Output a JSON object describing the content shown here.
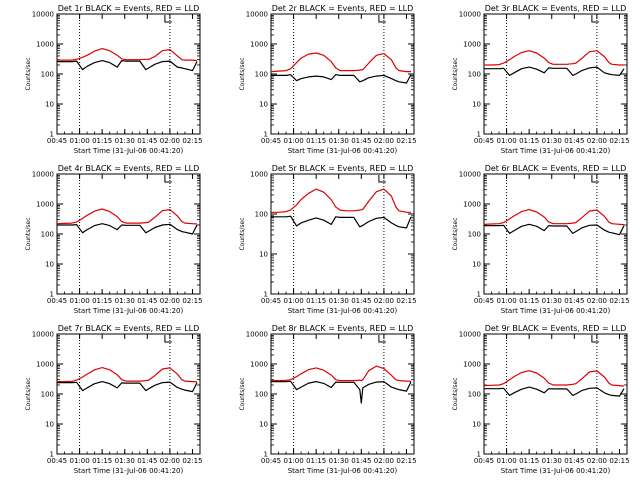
{
  "figure": {
    "colors": {
      "events": "#000000",
      "lld": "#e00000",
      "axes": "#000000",
      "background": "#ffffff"
    }
  },
  "chart_data": [
    {
      "type": "line",
      "title": "Det 1r BLACK = Events, RED = LLD",
      "xlabel": "Start Time (31-Jul-06 00:41:20)",
      "ylabel": "Counts/sec",
      "yscale": "log",
      "ylim": [
        1,
        10000
      ],
      "xlim": [
        "00:45",
        "02:20"
      ],
      "vlines": [
        "01:00",
        "02:00"
      ],
      "grid": false,
      "x_ticks": [
        "00:45",
        "01:00",
        "01:15",
        "01:30",
        "01:45",
        "02:00",
        "02:15"
      ],
      "y_ticks": [
        "1",
        "10",
        "100",
        "1000",
        "10000"
      ],
      "x": [
        "00:45",
        "00:50",
        "00:55",
        "00:58",
        "01:02",
        "01:05",
        "01:10",
        "01:15",
        "01:20",
        "01:25",
        "01:28",
        "01:31",
        "01:35",
        "01:40",
        "01:44",
        "01:46",
        "01:50",
        "01:55",
        "02:00",
        "02:05",
        "02:08",
        "02:10",
        "02:15",
        "02:18"
      ],
      "series": [
        {
          "name": "LLD",
          "color": "red",
          "values": [
            290,
            290,
            290,
            310,
            360,
            420,
            580,
            700,
            600,
            420,
            320,
            300,
            300,
            300,
            310,
            310,
            380,
            600,
            650,
            400,
            300,
            290,
            290,
            280
          ]
        },
        {
          "name": "Events",
          "color": "black",
          "values": [
            260,
            260,
            260,
            270,
            140,
            180,
            240,
            280,
            240,
            170,
            280,
            270,
            270,
            270,
            140,
            160,
            210,
            260,
            270,
            170,
            160,
            150,
            130,
            260
          ]
        }
      ]
    },
    {
      "type": "line",
      "title": "Det 2r BLACK = Events, RED = LLD",
      "xlabel": "Start Time (31-Jul-06 00:41:20)",
      "ylabel": "Counts/sec",
      "yscale": "log",
      "ylim": [
        1,
        10000
      ],
      "xlim": [
        "00:45",
        "02:20"
      ],
      "vlines": [
        "01:00",
        "02:00"
      ],
      "grid": false,
      "x_ticks": [
        "00:45",
        "01:00",
        "01:15",
        "01:30",
        "01:45",
        "02:00",
        "02:15"
      ],
      "y_ticks": [
        "1",
        "10",
        "100",
        "1000",
        "10000"
      ],
      "x": [
        "00:45",
        "00:50",
        "00:55",
        "00:58",
        "01:02",
        "01:05",
        "01:10",
        "01:15",
        "01:20",
        "01:25",
        "01:28",
        "01:31",
        "01:35",
        "01:40",
        "01:44",
        "01:46",
        "01:50",
        "01:55",
        "02:00",
        "02:05",
        "02:08",
        "02:10",
        "02:15",
        "02:18"
      ],
      "series": [
        {
          "name": "LLD",
          "color": "red",
          "values": [
            120,
            125,
            130,
            150,
            240,
            340,
            460,
            500,
            420,
            260,
            160,
            130,
            130,
            130,
            135,
            140,
            230,
            420,
            480,
            300,
            160,
            130,
            120,
            120
          ]
        },
        {
          "name": "Events",
          "color": "black",
          "values": [
            90,
            90,
            90,
            95,
            60,
            70,
            80,
            85,
            80,
            65,
            95,
            90,
            90,
            90,
            55,
            60,
            75,
            85,
            90,
            70,
            60,
            55,
            50,
            95
          ]
        }
      ]
    },
    {
      "type": "line",
      "title": "Det 3r BLACK = Events, RED = LLD",
      "xlabel": "Start Time (31-Jul-06 00:41:20)",
      "ylabel": "Counts/sec",
      "yscale": "log",
      "ylim": [
        1,
        10000
      ],
      "xlim": [
        "00:45",
        "02:20"
      ],
      "vlines": [
        "01:00",
        "02:00"
      ],
      "grid": false,
      "x_ticks": [
        "00:45",
        "01:00",
        "01:15",
        "01:30",
        "01:45",
        "02:00",
        "02:15"
      ],
      "y_ticks": [
        "1",
        "10",
        "100",
        "1000",
        "10000"
      ],
      "x": [
        "00:45",
        "00:50",
        "00:55",
        "00:58",
        "01:02",
        "01:05",
        "01:10",
        "01:15",
        "01:20",
        "01:25",
        "01:28",
        "01:31",
        "01:35",
        "01:40",
        "01:44",
        "01:46",
        "01:50",
        "01:55",
        "02:00",
        "02:05",
        "02:08",
        "02:10",
        "02:15",
        "02:18"
      ],
      "series": [
        {
          "name": "LLD",
          "color": "red",
          "values": [
            200,
            200,
            205,
            230,
            300,
            380,
            520,
            600,
            500,
            340,
            240,
            210,
            210,
            210,
            220,
            230,
            330,
            550,
            600,
            380,
            240,
            210,
            200,
            200
          ]
        },
        {
          "name": "Events",
          "color": "black",
          "values": [
            150,
            150,
            150,
            155,
            90,
            110,
            150,
            170,
            145,
            110,
            160,
            155,
            155,
            155,
            90,
            100,
            130,
            160,
            170,
            110,
            100,
            95,
            90,
            150
          ]
        }
      ]
    },
    {
      "type": "line",
      "title": "Det 4r BLACK = Events, RED = LLD",
      "xlabel": "Start Time (31-Jul-06 00:41:20)",
      "ylabel": "Counts/sec",
      "yscale": "log",
      "ylim": [
        1,
        10000
      ],
      "xlim": [
        "00:45",
        "02:20"
      ],
      "vlines": [
        "01:00",
        "02:00"
      ],
      "grid": false,
      "x_ticks": [
        "00:45",
        "01:00",
        "01:15",
        "01:30",
        "01:45",
        "02:00",
        "02:15"
      ],
      "y_ticks": [
        "1",
        "10",
        "100",
        "1000",
        "10000"
      ],
      "x": [
        "00:45",
        "00:50",
        "00:55",
        "00:58",
        "01:02",
        "01:05",
        "01:10",
        "01:15",
        "01:20",
        "01:25",
        "01:28",
        "01:31",
        "01:35",
        "01:40",
        "01:44",
        "01:46",
        "01:50",
        "01:55",
        "02:00",
        "02:05",
        "02:08",
        "02:10",
        "02:15",
        "02:18"
      ],
      "series": [
        {
          "name": "LLD",
          "color": "red",
          "values": [
            220,
            225,
            230,
            250,
            330,
            420,
            580,
            680,
            560,
            380,
            260,
            230,
            230,
            230,
            240,
            250,
            360,
            600,
            650,
            400,
            260,
            230,
            220,
            215
          ]
        },
        {
          "name": "Events",
          "color": "black",
          "values": [
            200,
            200,
            200,
            205,
            110,
            140,
            190,
            220,
            190,
            140,
            200,
            195,
            195,
            195,
            110,
            125,
            165,
            200,
            210,
            140,
            120,
            115,
            100,
            200
          ]
        }
      ]
    },
    {
      "type": "line",
      "title": "Det 5r BLACK = Events, RED = LLD",
      "xlabel": "Start Time (31-Jul-06 00:41:20)",
      "ylabel": "Counts/sec",
      "yscale": "log",
      "ylim": [
        1,
        1000
      ],
      "xlim": [
        "00:45",
        "02:20"
      ],
      "vlines": [
        "01:00",
        "02:00"
      ],
      "grid": false,
      "x_ticks": [
        "00:45",
        "01:00",
        "01:15",
        "01:30",
        "01:45",
        "02:00",
        "02:15"
      ],
      "y_ticks": [
        "1",
        "10",
        "100",
        "1000"
      ],
      "x": [
        "00:45",
        "00:50",
        "00:55",
        "00:58",
        "01:02",
        "01:05",
        "01:10",
        "01:15",
        "01:20",
        "01:25",
        "01:28",
        "01:31",
        "01:35",
        "01:40",
        "01:44",
        "01:46",
        "01:50",
        "01:55",
        "02:00",
        "02:05",
        "02:08",
        "02:10",
        "02:15",
        "02:18"
      ],
      "series": [
        {
          "name": "LLD",
          "color": "red",
          "values": [
            110,
            110,
            115,
            125,
            170,
            230,
            330,
            420,
            350,
            230,
            150,
            125,
            120,
            120,
            125,
            130,
            210,
            360,
            420,
            280,
            150,
            120,
            110,
            110
          ]
        },
        {
          "name": "Events",
          "color": "black",
          "values": [
            85,
            85,
            85,
            88,
            50,
            60,
            70,
            80,
            70,
            55,
            85,
            82,
            82,
            82,
            48,
            52,
            65,
            78,
            82,
            60,
            52,
            48,
            45,
            85
          ]
        }
      ]
    },
    {
      "type": "line",
      "title": "Det 6r BLACK = Events, RED = LLD",
      "xlabel": "Start Time (31-Jul-06 00:41:20)",
      "ylabel": "Counts/sec",
      "yscale": "log",
      "ylim": [
        1,
        10000
      ],
      "xlim": [
        "00:45",
        "02:20"
      ],
      "vlines": [
        "01:00",
        "02:00"
      ],
      "grid": false,
      "x_ticks": [
        "00:45",
        "01:00",
        "01:15",
        "01:30",
        "01:45",
        "02:00",
        "02:15"
      ],
      "y_ticks": [
        "1",
        "10",
        "100",
        "1000",
        "10000"
      ],
      "x": [
        "00:45",
        "00:50",
        "00:55",
        "00:58",
        "01:02",
        "01:05",
        "01:10",
        "01:15",
        "01:20",
        "01:25",
        "01:28",
        "01:31",
        "01:35",
        "01:40",
        "01:44",
        "01:46",
        "01:50",
        "01:55",
        "02:00",
        "02:05",
        "02:08",
        "02:10",
        "02:15",
        "02:18"
      ],
      "series": [
        {
          "name": "LLD",
          "color": "red",
          "values": [
            210,
            215,
            220,
            240,
            320,
            400,
            560,
            650,
            540,
            370,
            250,
            220,
            220,
            220,
            230,
            240,
            350,
            580,
            630,
            390,
            250,
            220,
            210,
            205
          ]
        },
        {
          "name": "Events",
          "color": "black",
          "values": [
            190,
            190,
            190,
            195,
            105,
            130,
            180,
            210,
            180,
            130,
            190,
            185,
            185,
            185,
            105,
            120,
            160,
            195,
            200,
            135,
            115,
            110,
            95,
            190
          ]
        }
      ]
    },
    {
      "type": "line",
      "title": "Det 7r BLACK = Events, RED = LLD",
      "xlabel": "Start Time (31-Jul-06 00:41:20)",
      "ylabel": "Counts/sec",
      "yscale": "log",
      "ylim": [
        1,
        10000
      ],
      "xlim": [
        "00:45",
        "02:20"
      ],
      "vlines": [
        "01:00",
        "02:00"
      ],
      "grid": false,
      "x_ticks": [
        "00:45",
        "01:00",
        "01:15",
        "01:30",
        "01:45",
        "02:00",
        "02:15"
      ],
      "y_ticks": [
        "1",
        "10",
        "100",
        "1000",
        "10000"
      ],
      "x": [
        "00:45",
        "00:50",
        "00:55",
        "00:58",
        "01:02",
        "01:05",
        "01:10",
        "01:15",
        "01:20",
        "01:25",
        "01:28",
        "01:31",
        "01:35",
        "01:40",
        "01:44",
        "01:46",
        "01:50",
        "01:55",
        "02:00",
        "02:05",
        "02:08",
        "02:10",
        "02:15",
        "02:18"
      ],
      "series": [
        {
          "name": "LLD",
          "color": "red",
          "values": [
            260,
            260,
            265,
            290,
            370,
            460,
            640,
            760,
            640,
            440,
            300,
            270,
            270,
            270,
            280,
            290,
            410,
            680,
            740,
            460,
            300,
            270,
            260,
            255
          ]
        },
        {
          "name": "Events",
          "color": "black",
          "values": [
            240,
            240,
            240,
            245,
            130,
            160,
            220,
            260,
            220,
            160,
            235,
            230,
            230,
            230,
            130,
            150,
            195,
            240,
            250,
            165,
            145,
            135,
            120,
            240
          ]
        }
      ]
    },
    {
      "type": "line",
      "title": "Det 8r BLACK = Events, RED = LLD",
      "xlabel": "Start Time (31-Jul-06 00:41:20)",
      "ylabel": "Counts/sec",
      "yscale": "log",
      "ylim": [
        1,
        10000
      ],
      "xlim": [
        "00:45",
        "02:20"
      ],
      "vlines": [
        "01:00",
        "02:00"
      ],
      "grid": false,
      "x_ticks": [
        "00:45",
        "01:00",
        "01:15",
        "01:30",
        "01:45",
        "02:00",
        "02:15"
      ],
      "y_ticks": [
        "1",
        "10",
        "100",
        "1000",
        "10000"
      ],
      "x": [
        "00:45",
        "00:50",
        "00:55",
        "00:58",
        "01:02",
        "01:05",
        "01:10",
        "01:15",
        "01:20",
        "01:25",
        "01:28",
        "01:31",
        "01:35",
        "01:40",
        "01:44",
        "01:45",
        "01:46",
        "01:50",
        "01:55",
        "02:00",
        "02:05",
        "02:08",
        "02:10",
        "02:15",
        "02:18"
      ],
      "series": [
        {
          "name": "LLD",
          "color": "red",
          "values": [
            280,
            280,
            285,
            300,
            380,
            470,
            650,
            740,
            620,
            430,
            300,
            280,
            280,
            280,
            290,
            280,
            300,
            600,
            850,
            700,
            420,
            300,
            280,
            270,
            265
          ]
        },
        {
          "name": "Events",
          "color": "black",
          "values": [
            260,
            260,
            260,
            265,
            140,
            170,
            230,
            260,
            225,
            165,
            250,
            245,
            245,
            245,
            140,
            50,
            160,
            210,
            250,
            260,
            170,
            150,
            140,
            125,
            255
          ]
        }
      ]
    },
    {
      "type": "line",
      "title": "Det 9r BLACK = Events, RED = LLD",
      "xlabel": "Start Time (31-Jul-06 00:41:20)",
      "ylabel": "Counts/sec",
      "yscale": "log",
      "ylim": [
        1,
        10000
      ],
      "xlim": [
        "00:45",
        "02:20"
      ],
      "vlines": [
        "01:00",
        "02:00"
      ],
      "grid": false,
      "x_ticks": [
        "00:45",
        "01:00",
        "01:15",
        "01:30",
        "01:45",
        "02:00",
        "02:15"
      ],
      "y_ticks": [
        "1",
        "10",
        "100",
        "1000",
        "10000"
      ],
      "x": [
        "00:45",
        "00:50",
        "00:55",
        "00:58",
        "01:02",
        "01:05",
        "01:10",
        "01:15",
        "01:20",
        "01:25",
        "01:28",
        "01:31",
        "01:35",
        "01:40",
        "01:44",
        "01:46",
        "01:50",
        "01:55",
        "02:00",
        "02:05",
        "02:08",
        "02:10",
        "02:15",
        "02:18"
      ],
      "series": [
        {
          "name": "LLD",
          "color": "red",
          "values": [
            190,
            195,
            200,
            220,
            300,
            380,
            520,
            600,
            500,
            340,
            230,
            200,
            200,
            200,
            210,
            220,
            320,
            540,
            590,
            370,
            230,
            200,
            190,
            185
          ]
        },
        {
          "name": "Events",
          "color": "black",
          "values": [
            150,
            150,
            150,
            155,
            90,
            110,
            145,
            170,
            145,
            110,
            150,
            148,
            148,
            148,
            90,
            100,
            130,
            155,
            160,
            110,
            95,
            90,
            85,
            150
          ]
        }
      ]
    }
  ]
}
